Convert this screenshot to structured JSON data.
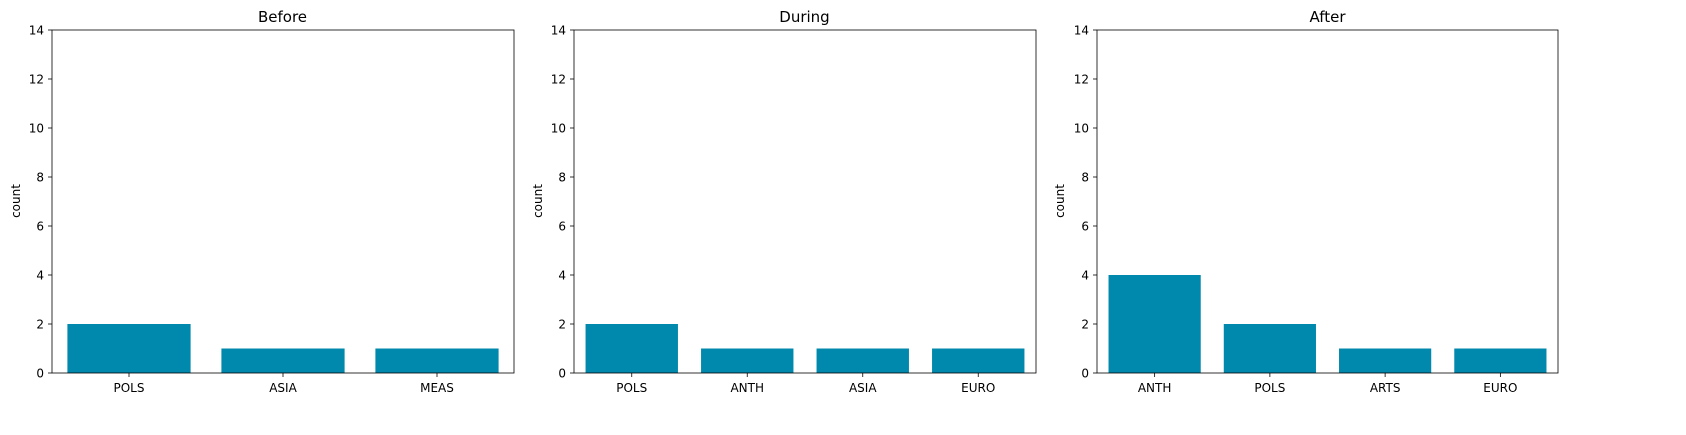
{
  "figure": {
    "background": "#ffffff",
    "bar_color": "#0088ad"
  },
  "chart_data": [
    {
      "type": "bar",
      "title": "Before",
      "xlabel": "",
      "ylabel": "count",
      "ylim": [
        0,
        14
      ],
      "yticks": [
        0,
        2,
        4,
        6,
        8,
        10,
        12,
        14
      ],
      "categories": [
        "POLS",
        "ASIA",
        "MEAS"
      ],
      "values": [
        2,
        1,
        1
      ],
      "grid": false,
      "legend": "none"
    },
    {
      "type": "bar",
      "title": "During",
      "xlabel": "",
      "ylabel": "count",
      "ylim": [
        0,
        14
      ],
      "yticks": [
        0,
        2,
        4,
        6,
        8,
        10,
        12,
        14
      ],
      "categories": [
        "POLS",
        "ANTH",
        "ASIA",
        "EURO"
      ],
      "values": [
        2,
        1,
        1,
        1
      ],
      "grid": false,
      "legend": "none"
    },
    {
      "type": "bar",
      "title": "After",
      "xlabel": "",
      "ylabel": "count",
      "ylim": [
        0,
        14
      ],
      "yticks": [
        0,
        2,
        4,
        6,
        8,
        10,
        12,
        14
      ],
      "categories": [
        "ANTH",
        "POLS",
        "ARTS",
        "EURO"
      ],
      "values": [
        4,
        2,
        1,
        1
      ],
      "grid": false,
      "legend": "none"
    }
  ]
}
